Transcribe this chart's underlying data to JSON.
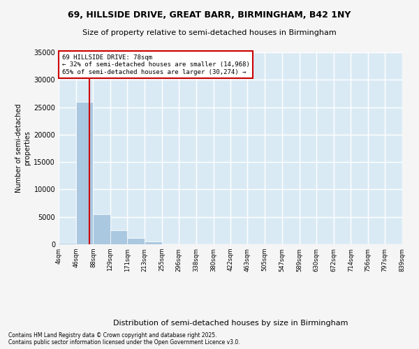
{
  "title": "69, HILLSIDE DRIVE, GREAT BARR, BIRMINGHAM, B42 1NY",
  "subtitle": "Size of property relative to semi-detached houses in Birmingham",
  "xlabel": "Distribution of semi-detached houses by size in Birmingham",
  "ylabel": "Number of semi-detached\nproperties",
  "footer_line1": "Contains HM Land Registry data © Crown copyright and database right 2025.",
  "footer_line2": "Contains public sector information licensed under the Open Government Licence v3.0.",
  "property_size": 78,
  "annotation_text_line1": "69 HILLSIDE DRIVE: 78sqm",
  "annotation_text_line2": "← 32% of semi-detached houses are smaller (14,968)",
  "annotation_text_line3": "65% of semi-detached houses are larger (30,274) →",
  "bar_color": "#aac8e0",
  "highlight_color": "#cc0000",
  "background_color": "#daeaf5",
  "grid_color": "#ffffff",
  "fig_background": "#f5f5f5",
  "bins": [
    4,
    46,
    88,
    129,
    171,
    213,
    255,
    296,
    338,
    380,
    422,
    463,
    505,
    547,
    589,
    630,
    672,
    714,
    756,
    797,
    839
  ],
  "bin_labels": [
    "4sqm",
    "46sqm",
    "88sqm",
    "129sqm",
    "171sqm",
    "213sqm",
    "255sqm",
    "296sqm",
    "338sqm",
    "380sqm",
    "422sqm",
    "463sqm",
    "505sqm",
    "547sqm",
    "589sqm",
    "630sqm",
    "672sqm",
    "714sqm",
    "756sqm",
    "797sqm",
    "839sqm"
  ],
  "bar_heights": [
    300,
    26000,
    5500,
    2500,
    1200,
    500,
    100,
    0,
    0,
    0,
    0,
    0,
    0,
    0,
    0,
    0,
    0,
    0,
    0,
    0
  ],
  "ylim": [
    0,
    35000
  ],
  "yticks": [
    0,
    5000,
    10000,
    15000,
    20000,
    25000,
    30000,
    35000
  ]
}
